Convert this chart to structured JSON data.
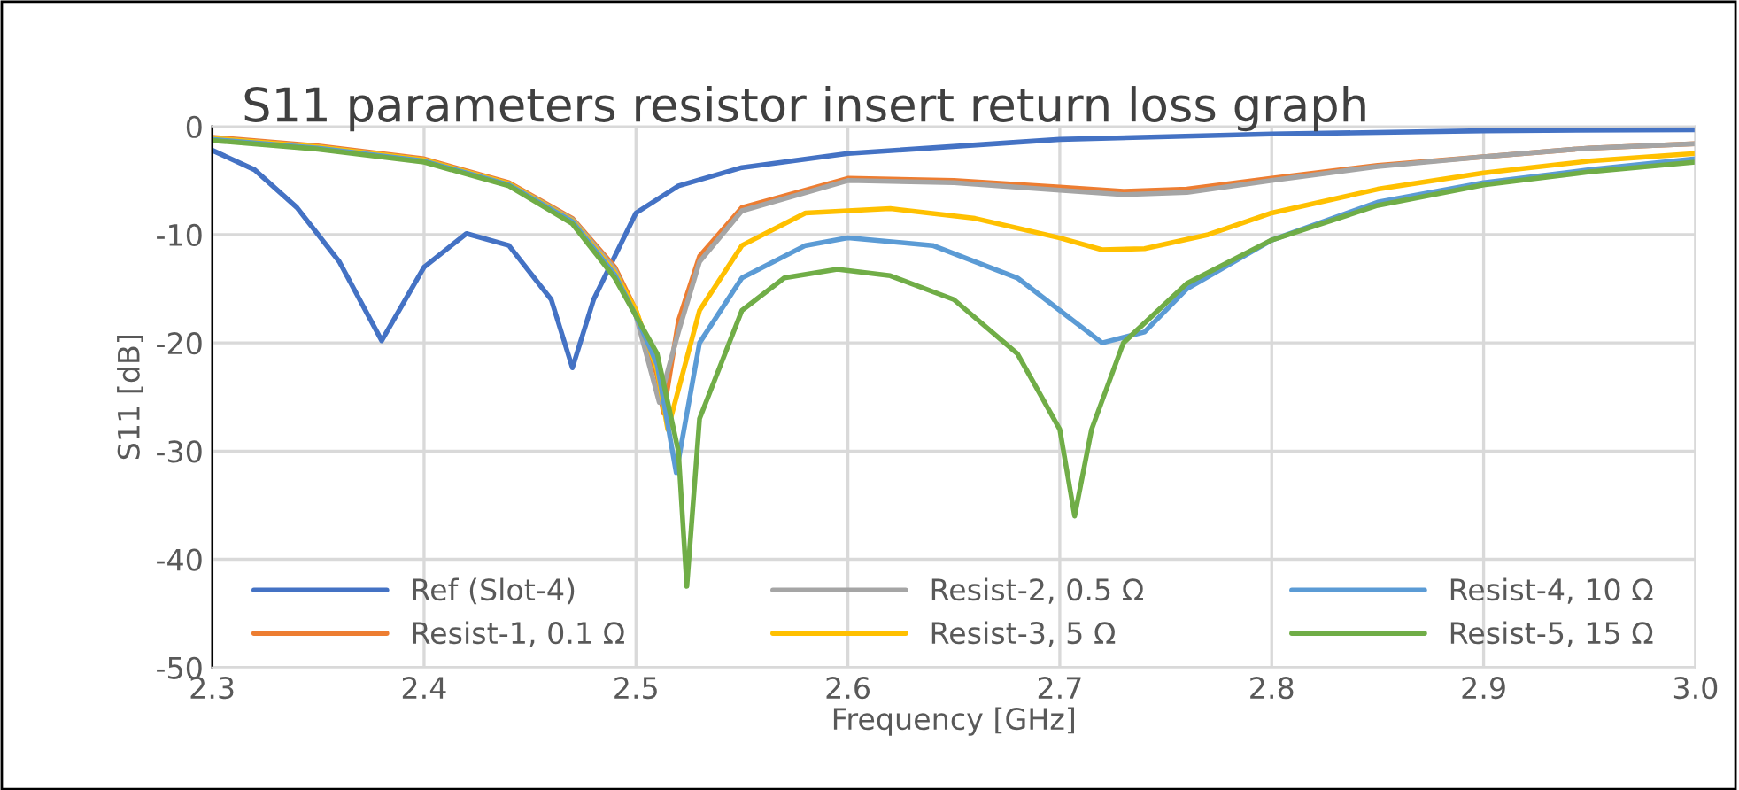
{
  "chart_data": {
    "type": "line",
    "title": "S11 parameters resistor insert return loss graph",
    "xlabel": "Frequency [GHz]",
    "ylabel": "S11 [dB]",
    "xlim": [
      2.3,
      3.0
    ],
    "xticks": [
      {
        "value": 2.3,
        "label": "2.3"
      },
      {
        "value": 2.4,
        "label": "2.4"
      },
      {
        "value": 2.5,
        "label": "2.5"
      },
      {
        "value": 2.6,
        "label": "2.6"
      },
      {
        "value": 2.7,
        "label": "2.7"
      },
      {
        "value": 2.8,
        "label": "2.8"
      },
      {
        "value": 2.9,
        "label": "2.9"
      },
      {
        "value": 3.0,
        "label": "3.0"
      }
    ],
    "ylim": [
      -50,
      0
    ],
    "yticks": [
      -50,
      -40,
      -30,
      -20,
      -10,
      0
    ],
    "grid": true,
    "legend": "bottom",
    "marker": "none",
    "line_style": "solid",
    "series": [
      {
        "name": "Ref (Slot-4)",
        "color": "#4472c4",
        "x": [
          2.3,
          2.32,
          2.34,
          2.36,
          2.38,
          2.4,
          2.42,
          2.44,
          2.46,
          2.47,
          2.48,
          2.5,
          2.52,
          2.55,
          2.6,
          2.7,
          2.8,
          2.9,
          3.0
        ],
        "values": [
          -2.2,
          -4,
          -7.5,
          -12.5,
          -19.8,
          -13,
          -9.9,
          -11,
          -16,
          -22.3,
          -16,
          -8,
          -5.5,
          -3.8,
          -2.5,
          -1.2,
          -0.7,
          -0.4,
          -0.3
        ]
      },
      {
        "name": "Resist-1, 0.1 Ω",
        "color": "#ed7d31",
        "x": [
          2.3,
          2.35,
          2.4,
          2.44,
          2.47,
          2.49,
          2.5,
          2.51,
          2.513,
          2.52,
          2.53,
          2.55,
          2.6,
          2.65,
          2.7,
          2.73,
          2.76,
          2.8,
          2.85,
          2.9,
          2.95,
          3.0
        ],
        "values": [
          -1,
          -1.8,
          -3,
          -5.2,
          -8.5,
          -13,
          -17,
          -23,
          -26.5,
          -18,
          -12,
          -7.5,
          -4.8,
          -5,
          -5.6,
          -6,
          -5.8,
          -4.8,
          -3.6,
          -2.8,
          -2,
          -1.6
        ]
      },
      {
        "name": "Resist-2, 0.5 Ω",
        "color": "#a5a5a5",
        "x": [
          2.3,
          2.35,
          2.4,
          2.44,
          2.47,
          2.49,
          2.5,
          2.511,
          2.52,
          2.53,
          2.55,
          2.6,
          2.65,
          2.7,
          2.73,
          2.76,
          2.8,
          2.85,
          2.9,
          2.95,
          3.0
        ],
        "values": [
          -1.1,
          -1.9,
          -3.1,
          -5.3,
          -8.6,
          -13.2,
          -17.5,
          -25.5,
          -19,
          -12.5,
          -7.8,
          -5,
          -5.2,
          -5.9,
          -6.3,
          -6.1,
          -5,
          -3.7,
          -2.8,
          -2,
          -1.6
        ]
      },
      {
        "name": "Resist-3, 5 Ω",
        "color": "#ffc000",
        "x": [
          2.3,
          2.35,
          2.4,
          2.44,
          2.47,
          2.49,
          2.5,
          2.51,
          2.515,
          2.53,
          2.55,
          2.58,
          2.62,
          2.66,
          2.7,
          2.72,
          2.74,
          2.77,
          2.8,
          2.85,
          2.9,
          2.95,
          3.0
        ],
        "values": [
          -1.1,
          -1.9,
          -3.1,
          -5.3,
          -8.7,
          -13.5,
          -17,
          -22.5,
          -28,
          -17,
          -11,
          -8,
          -7.6,
          -8.5,
          -10.3,
          -11.4,
          -11.3,
          -10,
          -8,
          -5.8,
          -4.3,
          -3.2,
          -2.5
        ]
      },
      {
        "name": "Resist-4, 10 Ω",
        "color": "#5b9bd5",
        "x": [
          2.3,
          2.35,
          2.4,
          2.44,
          2.47,
          2.49,
          2.5,
          2.51,
          2.519,
          2.53,
          2.55,
          2.58,
          2.6,
          2.64,
          2.68,
          2.7,
          2.72,
          2.74,
          2.76,
          2.8,
          2.85,
          2.9,
          2.95,
          3.0
        ],
        "values": [
          -1.2,
          -2,
          -3.2,
          -5.4,
          -8.8,
          -13.7,
          -17.5,
          -22,
          -32,
          -20,
          -14,
          -11,
          -10.3,
          -11,
          -14,
          -17,
          -20,
          -19,
          -15,
          -10.5,
          -7,
          -5.2,
          -4,
          -3
        ]
      },
      {
        "name": "Resist-5, 15 Ω",
        "color": "#70ad47",
        "x": [
          2.3,
          2.35,
          2.4,
          2.44,
          2.47,
          2.49,
          2.5,
          2.51,
          2.52,
          2.524,
          2.53,
          2.55,
          2.57,
          2.595,
          2.62,
          2.65,
          2.68,
          2.7,
          2.707,
          2.715,
          2.73,
          2.76,
          2.8,
          2.85,
          2.9,
          2.95,
          3.0
        ],
        "values": [
          -1.3,
          -2.1,
          -3.3,
          -5.5,
          -9,
          -14,
          -17.5,
          -21,
          -30,
          -42.5,
          -27,
          -17,
          -14,
          -13.2,
          -13.8,
          -16,
          -21,
          -28,
          -36,
          -28,
          -20,
          -14.5,
          -10.5,
          -7.3,
          -5.4,
          -4.2,
          -3.3
        ]
      }
    ]
  }
}
